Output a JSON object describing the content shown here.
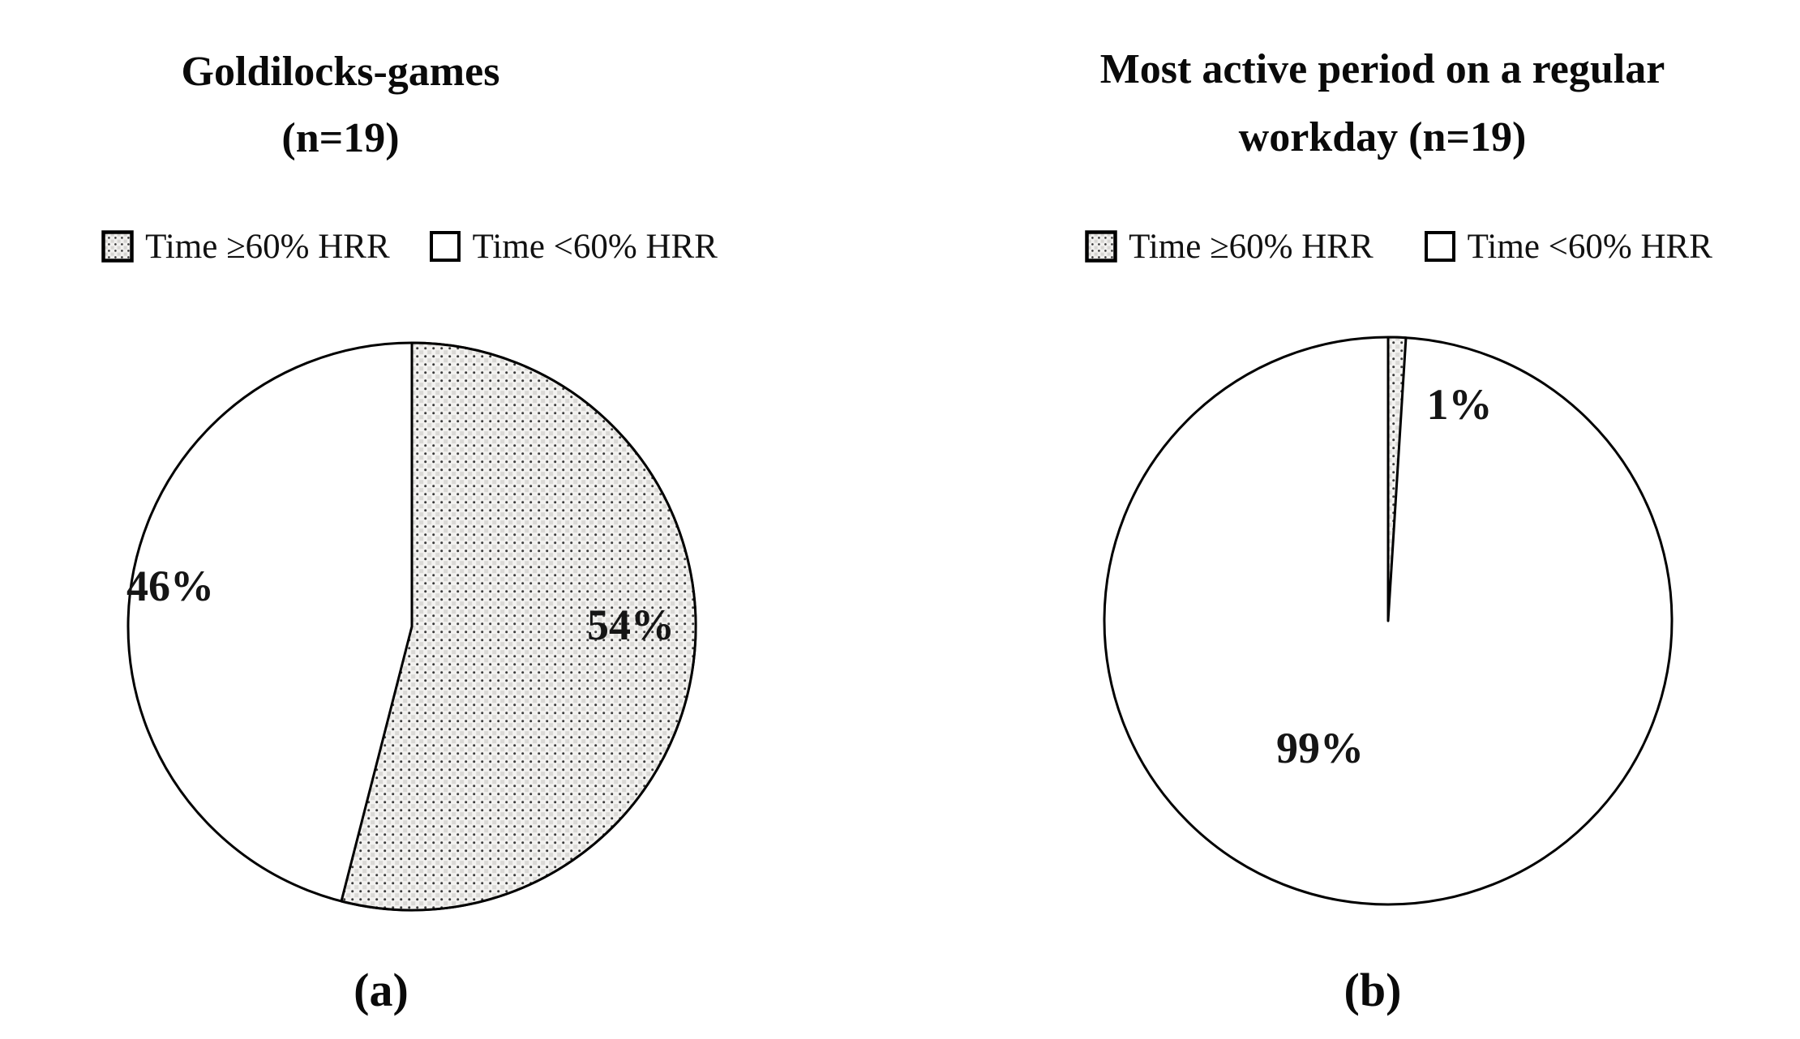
{
  "page": {
    "background": "#ffffff",
    "text_color": "#0d0d0d",
    "outline_color": "#000000",
    "dotted_slice_base": "#f3f2f0",
    "dotted_slice_dot": "#333333"
  },
  "charts": [
    {
      "id": "a",
      "title_line1": "Goldilocks-games",
      "title_line2": "(n=19)",
      "caption": "(a)",
      "legend": [
        {
          "label": "Time ≥60% HRR",
          "swatch": "dotted-pattern"
        },
        {
          "label": "Time <60% HRR",
          "swatch": "white"
        }
      ],
      "slices": [
        {
          "name": "Time ≥60% HRR",
          "value": 54,
          "value_label": "54%",
          "fill": "dotted-pattern"
        },
        {
          "name": "Time <60% HRR",
          "value": 46,
          "value_label": "46%",
          "fill": "white"
        }
      ]
    },
    {
      "id": "b",
      "title_line1": "Most active period on a regular",
      "title_line2": "workday (n=19)",
      "caption": "(b)",
      "legend": [
        {
          "label": "Time ≥60% HRR",
          "swatch": "dotted-pattern"
        },
        {
          "label": "Time <60% HRR",
          "swatch": "white"
        }
      ],
      "slices": [
        {
          "name": "Time ≥60% HRR",
          "value": 1,
          "value_label": "1%",
          "fill": "dotted-pattern"
        },
        {
          "name": "Time <60% HRR",
          "value": 99,
          "value_label": "99%",
          "fill": "white"
        }
      ]
    }
  ],
  "chart_data": [
    {
      "type": "pie",
      "title": "Goldilocks-games (n=19)",
      "n": 19,
      "labels": [
        "Time ≥60% HRR",
        "Time <60% HRR"
      ],
      "values": [
        54,
        46
      ],
      "value_labels": [
        "54%",
        "46%"
      ],
      "slice_styles": [
        "halftone-dot-pattern",
        "white"
      ],
      "start_angle_deg": 0,
      "direction": "clockwise",
      "legend_position": "top",
      "caption": "(a)"
    },
    {
      "type": "pie",
      "title": "Most active period on a regular workday (n=19)",
      "n": 19,
      "labels": [
        "Time ≥60% HRR",
        "Time <60% HRR"
      ],
      "values": [
        1,
        99
      ],
      "value_labels": [
        "1%",
        "99%"
      ],
      "slice_styles": [
        "halftone-dot-pattern",
        "white"
      ],
      "start_angle_deg": 0,
      "direction": "clockwise",
      "legend_position": "top",
      "caption": "(b)"
    }
  ]
}
